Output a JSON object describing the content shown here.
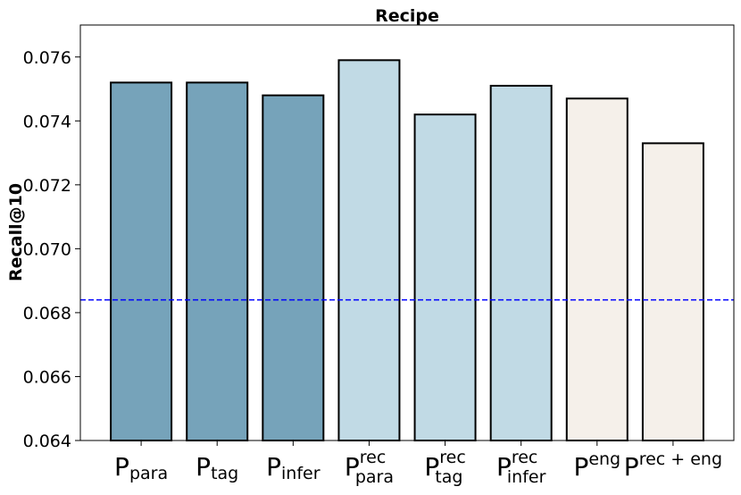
{
  "chart_data": {
    "type": "bar",
    "title": "Recipe",
    "xlabel": "",
    "ylabel": "Recall@10",
    "ylim": [
      0.064,
      0.077
    ],
    "yticks": [
      "0.064",
      "0.066",
      "0.068",
      "0.070",
      "0.072",
      "0.074",
      "0.076"
    ],
    "categories": [
      {
        "base": "P",
        "sub": "para",
        "sup": ""
      },
      {
        "base": "P",
        "sub": "tag",
        "sup": ""
      },
      {
        "base": "P",
        "sub": "infer",
        "sup": ""
      },
      {
        "base": "P",
        "sub": "para",
        "sup": "rec"
      },
      {
        "base": "P",
        "sub": "tag",
        "sup": "rec"
      },
      {
        "base": "P",
        "sub": "infer",
        "sup": "rec"
      },
      {
        "base": "P",
        "sub": "",
        "sup": "eng"
      },
      {
        "base": "P",
        "sub": "",
        "sup": "rec + eng"
      }
    ],
    "values": [
      0.0752,
      0.0752,
      0.0748,
      0.0759,
      0.0742,
      0.0751,
      0.0747,
      0.0733
    ],
    "bar_colors": [
      "#76a3ba",
      "#76a3ba",
      "#76a3ba",
      "#c1dae5",
      "#c1dae5",
      "#c1dae5",
      "#f5f0ea",
      "#f5f0ea"
    ],
    "baseline": {
      "value": 0.0684,
      "color": "#0000ff",
      "style": "dashed"
    },
    "grid": false,
    "legend": "none"
  }
}
